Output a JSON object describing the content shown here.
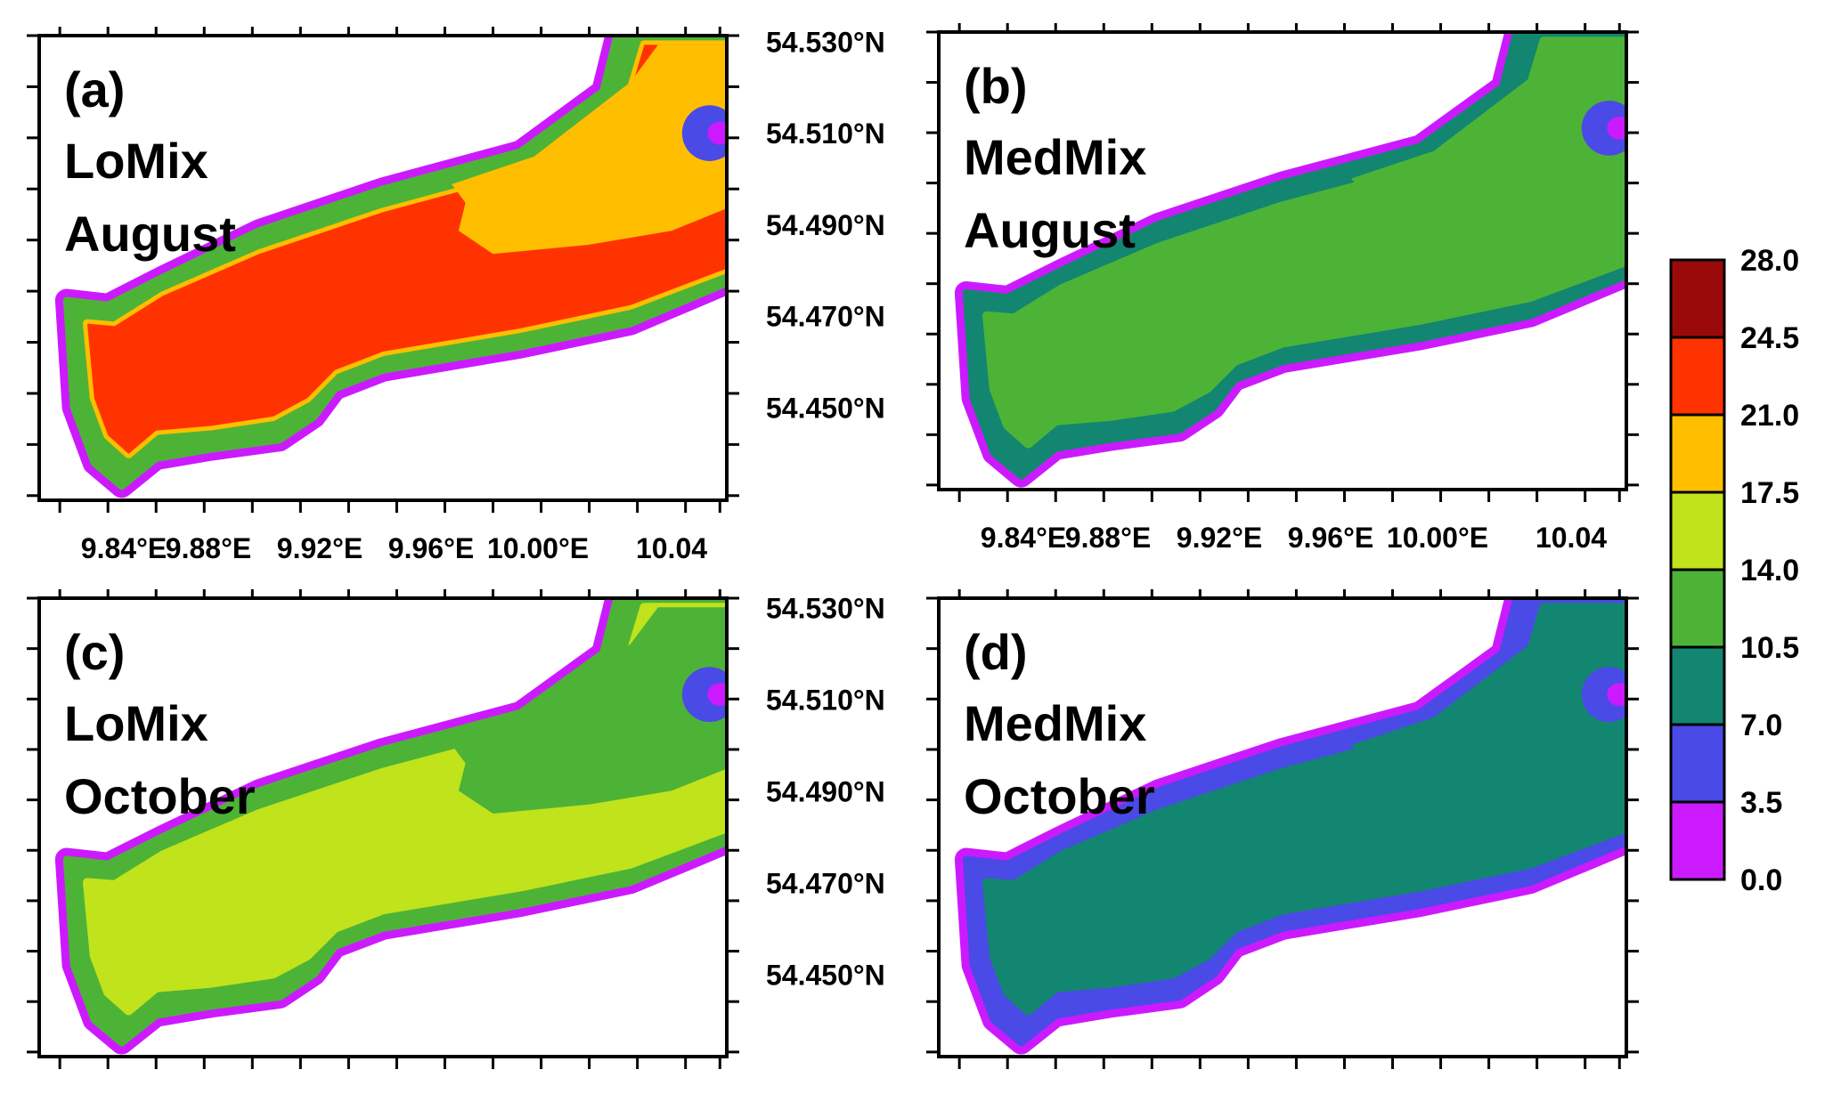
{
  "chart_data": {
    "type": "heatmap",
    "colorbar": {
      "ticks": [
        "28.0",
        "24.5",
        "21.0",
        "17.5",
        "14.0",
        "10.5",
        "7.0",
        "3.5",
        "0.0"
      ],
      "colors": [
        "#9b0a0a",
        "#ff3300",
        "#ffbf00",
        "#c0e31c",
        "#4db337",
        "#128670",
        "#4a4ae6",
        "#cc1aff"
      ]
    },
    "x_ticks": [
      "9.84°E",
      "9.88°E",
      "9.92°E",
      "9.96°E",
      "10.00°E",
      "10.04"
    ],
    "y_ticks": [
      "54.530°N",
      "54.510°N",
      "54.490°N",
      "54.470°N",
      "54.450°N"
    ],
    "panels": [
      {
        "label": "(a)",
        "line1": "LoMix",
        "line2": "August",
        "interior_color": "#ff3300",
        "inner_rim_color": "#ffbf00",
        "shelf_color": "#4db337",
        "northeast_color": "#ffbf00",
        "pocket_color": "#4a4ae6",
        "land_color": "#cc1aff"
      },
      {
        "label": "(b)",
        "line1": "MedMix",
        "line2": "August",
        "interior_color": "#4db337",
        "inner_rim_color": "#4db337",
        "shelf_color": "#128670",
        "northeast_color": "#4db337",
        "pocket_color": "#4a4ae6",
        "land_color": "#cc1aff"
      },
      {
        "label": "(c)",
        "line1": "LoMix",
        "line2": "October",
        "interior_color": "#c0e31c",
        "inner_rim_color": "#c0e31c",
        "shelf_color": "#4db337",
        "northeast_color": "#4db337",
        "pocket_color": "#4a4ae6",
        "land_color": "#cc1aff"
      },
      {
        "label": "(d)",
        "line1": "MedMix",
        "line2": "October",
        "interior_color": "#128670",
        "inner_rim_color": "#128670",
        "shelf_color": "#4a4ae6",
        "northeast_color": "#128670",
        "pocket_color": "#4a4ae6",
        "land_color": "#cc1aff"
      }
    ]
  }
}
